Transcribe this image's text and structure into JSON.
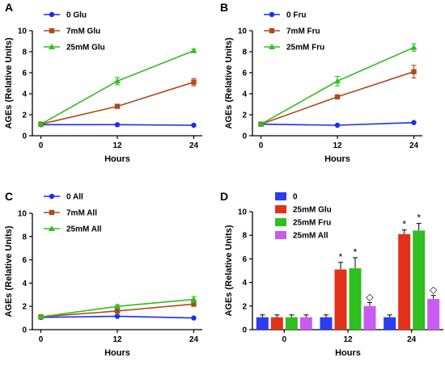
{
  "chart_data": [
    {
      "panel": "A",
      "type": "line",
      "xlabel": "Hours",
      "ylabel": "AGEs (Relative Units)",
      "x": [
        0,
        12,
        24
      ],
      "xticks": [
        "0",
        "12",
        "24"
      ],
      "ylim": [
        0,
        10
      ],
      "yticks": [
        0,
        2,
        4,
        6,
        8,
        10
      ],
      "legend_position": "top-left",
      "series": [
        {
          "name": "0 Glu",
          "color": "#1a2ee8",
          "marker": "circle",
          "values": [
            1.05,
            1.05,
            1.0
          ],
          "errors": [
            0.05,
            0.05,
            0.05
          ]
        },
        {
          "name": "7mM Glu",
          "color": "#b04a1e",
          "marker": "square",
          "values": [
            1.1,
            2.8,
            5.1
          ],
          "errors": [
            0.1,
            0.15,
            0.35
          ]
        },
        {
          "name": "25mM Glu",
          "color": "#2fbf1f",
          "marker": "triangle",
          "values": [
            1.1,
            5.2,
            8.1
          ],
          "errors": [
            0.1,
            0.35,
            0.15
          ]
        }
      ]
    },
    {
      "panel": "B",
      "type": "line",
      "xlabel": "Hours",
      "ylabel": "AGEs (Relative Units)",
      "x": [
        0,
        12,
        24
      ],
      "xticks": [
        "0",
        "12",
        "24"
      ],
      "ylim": [
        0,
        10
      ],
      "yticks": [
        0,
        2,
        4,
        6,
        8,
        10
      ],
      "legend_position": "top-left",
      "series": [
        {
          "name": "0 Fru",
          "color": "#1a2ee8",
          "marker": "circle",
          "values": [
            1.1,
            1.0,
            1.25
          ],
          "errors": [
            0.05,
            0.05,
            0.05
          ]
        },
        {
          "name": "7mM Fru",
          "color": "#b04a1e",
          "marker": "square",
          "values": [
            1.1,
            3.7,
            6.1
          ],
          "errors": [
            0.1,
            0.15,
            0.6
          ]
        },
        {
          "name": "25mM Fru",
          "color": "#2fbf1f",
          "marker": "triangle",
          "values": [
            1.1,
            5.2,
            8.4
          ],
          "errors": [
            0.1,
            0.45,
            0.35
          ]
        }
      ]
    },
    {
      "panel": "C",
      "type": "line",
      "xlabel": "Hours",
      "ylabel": "AGEs (Relative Units)",
      "x": [
        0,
        12,
        24
      ],
      "xticks": [
        "0",
        "12",
        "24"
      ],
      "ylim": [
        0,
        10
      ],
      "yticks": [
        0,
        2,
        4,
        6,
        8,
        10
      ],
      "legend_position": "top-left",
      "series": [
        {
          "name": "0 All",
          "color": "#1a2ee8",
          "marker": "circle",
          "values": [
            1.05,
            1.15,
            1.0
          ],
          "errors": [
            0.05,
            0.05,
            0.05
          ]
        },
        {
          "name": "7mM All",
          "color": "#b04a1e",
          "marker": "square",
          "values": [
            1.1,
            1.6,
            2.2
          ],
          "errors": [
            0.1,
            0.15,
            0.2
          ]
        },
        {
          "name": "25mM All",
          "color": "#2fbf1f",
          "marker": "triangle",
          "values": [
            1.1,
            2.0,
            2.6
          ],
          "errors": [
            0.1,
            0.15,
            0.25
          ]
        }
      ]
    },
    {
      "panel": "D",
      "type": "bar",
      "xlabel": "Hours",
      "ylabel": "AGEs (Relative Units)",
      "categories": [
        "0",
        "12",
        "24"
      ],
      "ylim": [
        0,
        10
      ],
      "yticks": [
        0,
        2,
        4,
        6,
        8,
        10
      ],
      "legend_position": "top-left",
      "series": [
        {
          "name": "0",
          "color": "#2a3df0",
          "values": [
            1.05,
            1.05,
            1.05
          ],
          "errors": [
            0.2,
            0.2,
            0.2
          ],
          "marks": [
            "",
            "",
            ""
          ]
        },
        {
          "name": "25mM Glu",
          "color": "#e0321a",
          "values": [
            1.05,
            5.1,
            8.1
          ],
          "errors": [
            0.2,
            0.6,
            0.35
          ],
          "marks": [
            "",
            "*",
            "*"
          ]
        },
        {
          "name": "25mM Fru",
          "color": "#2fbf1f",
          "values": [
            1.05,
            5.2,
            8.4
          ],
          "errors": [
            0.2,
            0.9,
            0.6
          ],
          "marks": [
            "",
            "*",
            "*"
          ]
        },
        {
          "name": "25mM All",
          "color": "#c85cf0",
          "values": [
            1.05,
            2.0,
            2.6
          ],
          "errors": [
            0.2,
            0.3,
            0.3
          ],
          "marks": [
            "",
            "◇",
            "◇"
          ]
        }
      ]
    }
  ]
}
